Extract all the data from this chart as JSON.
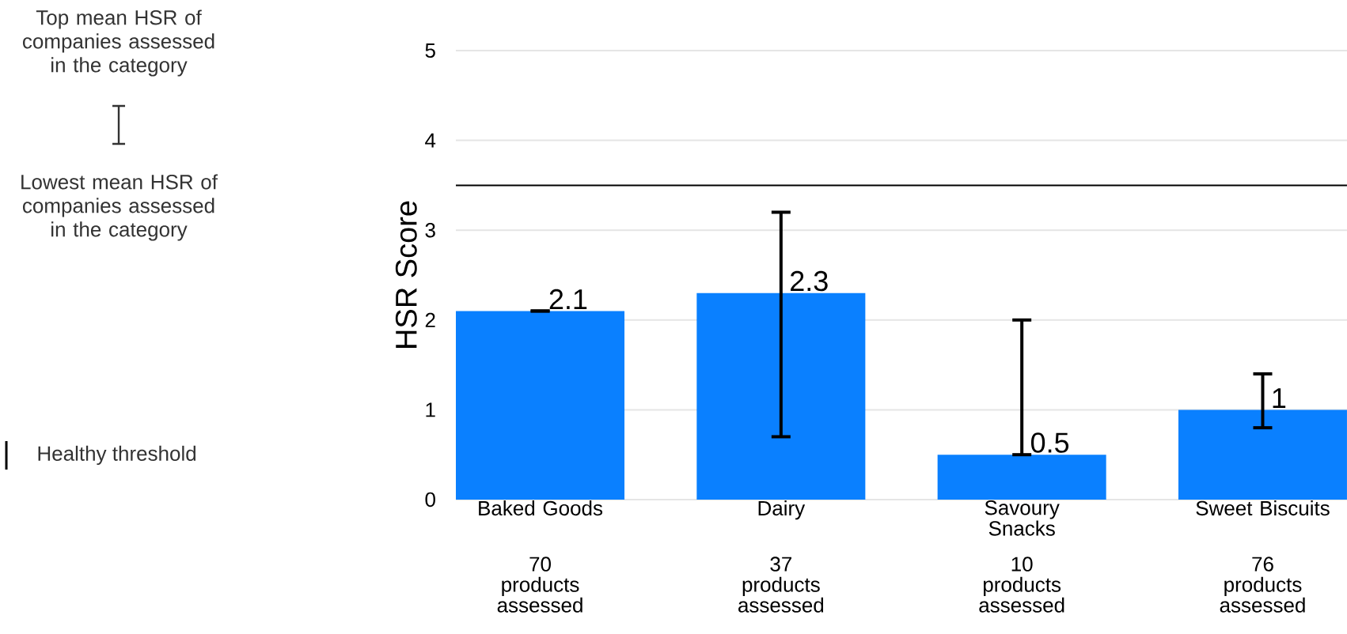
{
  "chart_data": {
    "type": "bar",
    "ylabel": "HSR Score",
    "categories": [
      "Baked Goods",
      "Dairy",
      "Savoury Snacks",
      "Sweet Biscuits"
    ],
    "values": [
      2.1,
      2.3,
      0.5,
      1
    ],
    "color": "#0a80ff",
    "errors": [
      [
        2.1,
        2.1
      ],
      [
        0.7,
        3.2
      ],
      [
        0.5,
        2.0
      ],
      [
        0.8,
        1.4
      ]
    ],
    "data_labels": true,
    "ylim": [
      0,
      5
    ],
    "yticks": [
      0,
      1,
      2,
      3,
      4,
      5
    ],
    "grid": "y",
    "ref_lines": [
      {
        "axis": "y",
        "value": 3.5,
        "label": "Healthy threshold",
        "color": "#000000"
      }
    ],
    "annotations": [
      "Top mean HSR of companies assessed in the category",
      "Lowest mean HSR of companies assessed in the category",
      "70 products assessed",
      "37 products assessed",
      "10 products assessed",
      "76 products assessed"
    ]
  }
}
